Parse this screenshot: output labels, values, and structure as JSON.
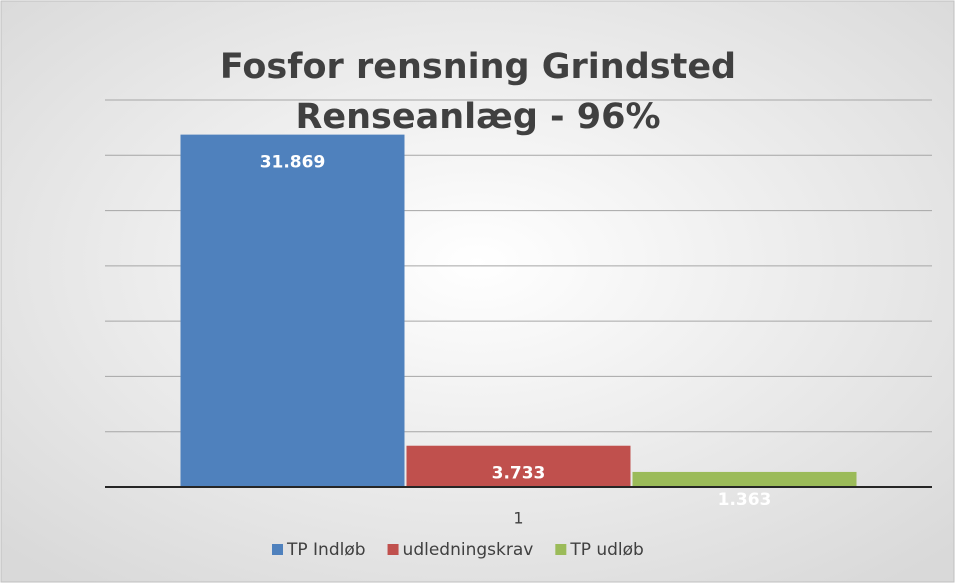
{
  "chart_data": {
    "type": "bar",
    "title": "Fosfor rensning Grindsted Renseanlæg - 96%",
    "categories": [
      "1"
    ],
    "series": [
      {
        "name": "TP Indløb",
        "color": "#4f81bd",
        "values": [
          31.869
        ]
      },
      {
        "name": "udledningskrav",
        "color": "#c0504d",
        "values": [
          3.733
        ]
      },
      {
        "name": "TP udløb",
        "color": "#9bbb59",
        "values": [
          1.363
        ]
      }
    ],
    "ylim": [
      0,
      35
    ],
    "yticks": [
      0,
      5,
      10,
      15,
      20,
      25,
      30,
      35
    ],
    "grid": true,
    "legend": "bottom"
  }
}
